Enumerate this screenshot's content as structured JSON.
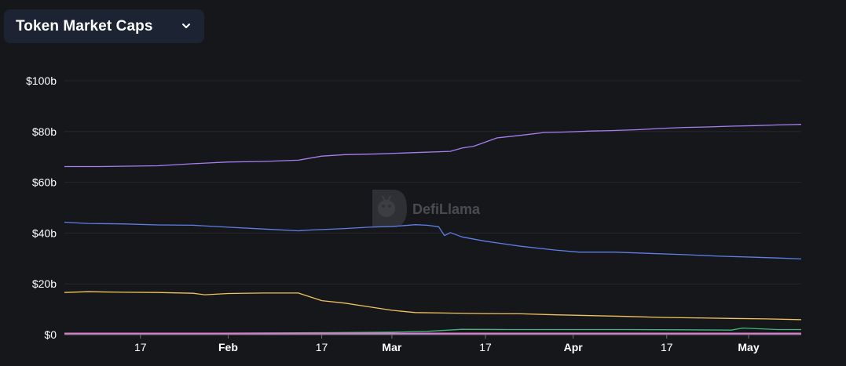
{
  "header": {
    "title": "Token Market Caps",
    "dropdown_icon": "chevron-down-icon"
  },
  "watermark": {
    "text": "DefiLlama",
    "icon": "llama-logo-icon"
  },
  "colors": {
    "background": "#16171b",
    "selector_bg": "#1c2433",
    "grid": "#26272c",
    "series": [
      "#a77ef0",
      "#5f7ee8",
      "#f1c45c",
      "#3fb877",
      "#e07bd2"
    ]
  },
  "chart_data": {
    "type": "line",
    "title": "",
    "xlabel": "",
    "ylabel": "",
    "ylim": [
      0,
      100
    ],
    "y_unit": "$b",
    "y_ticks": [
      "$0",
      "$20b",
      "$40b",
      "$60b",
      "$80b",
      "$100b"
    ],
    "y_tick_values": [
      0,
      20,
      40,
      60,
      80,
      100
    ],
    "x_ticks": [
      {
        "label": "17",
        "day": 17,
        "bold": false
      },
      {
        "label": "Feb",
        "day": 32,
        "bold": true
      },
      {
        "label": "17",
        "day": 48,
        "bold": false
      },
      {
        "label": "Mar",
        "day": 60,
        "bold": true
      },
      {
        "label": "17",
        "day": 76,
        "bold": false
      },
      {
        "label": "Apr",
        "day": 91,
        "bold": true
      },
      {
        "label": "17",
        "day": 107,
        "bold": false
      },
      {
        "label": "May",
        "day": 121,
        "bold": true
      }
    ],
    "xlim": [
      4,
      130
    ],
    "grid": true,
    "legend": "none",
    "series": [
      {
        "x": [
          4,
          10,
          20,
          26,
          32,
          38,
          44,
          48,
          52,
          58,
          64,
          70,
          72,
          74,
          78,
          82,
          86,
          90,
          94,
          98,
          102,
          106,
          110,
          114,
          118,
          122,
          126,
          130
        ],
        "values": [
          66.2,
          66.2,
          66.5,
          67.3,
          68.0,
          68.2,
          68.7,
          70.3,
          70.9,
          71.2,
          71.7,
          72.2,
          73.5,
          74.2,
          77.5,
          78.5,
          79.6,
          79.8,
          80.2,
          80.4,
          80.7,
          81.2,
          81.6,
          81.8,
          82.1,
          82.3,
          82.6,
          82.8
        ]
      },
      {
        "x": [
          4,
          8,
          14,
          20,
          26,
          32,
          38,
          44,
          46,
          52,
          56,
          60,
          64,
          66,
          68,
          69,
          70,
          72,
          76,
          82,
          88,
          92,
          98,
          104,
          110,
          116,
          122,
          126,
          130
        ],
        "values": [
          44.3,
          43.8,
          43.6,
          43.2,
          43.1,
          42.3,
          41.6,
          40.9,
          41.2,
          41.8,
          42.3,
          42.6,
          43.3,
          43.1,
          42.5,
          39.0,
          40.2,
          38.5,
          36.8,
          34.8,
          33.3,
          32.5,
          32.5,
          32.0,
          31.5,
          30.9,
          30.5,
          30.2,
          29.8
        ]
      },
      {
        "x": [
          4,
          8,
          14,
          20,
          26,
          28,
          32,
          38,
          44,
          46,
          48,
          52,
          56,
          60,
          64,
          70,
          76,
          82,
          88,
          94,
          100,
          106,
          112,
          118,
          124,
          130
        ],
        "values": [
          16.6,
          16.9,
          16.7,
          16.6,
          16.3,
          15.7,
          16.2,
          16.4,
          16.4,
          14.9,
          13.4,
          12.4,
          11.0,
          9.6,
          8.7,
          8.5,
          8.3,
          8.2,
          7.8,
          7.5,
          7.2,
          6.8,
          6.6,
          6.4,
          6.2,
          5.9
        ]
      },
      {
        "x": [
          4,
          30,
          50,
          60,
          66,
          72,
          80,
          90,
          100,
          110,
          118,
          120,
          126,
          130
        ],
        "values": [
          0.5,
          0.6,
          0.8,
          1.0,
          1.3,
          2.1,
          2.0,
          2.0,
          2.0,
          1.9,
          1.8,
          2.6,
          2.0,
          2.0
        ]
      },
      {
        "x": [
          4,
          130
        ],
        "values": [
          0.3,
          0.3
        ]
      }
    ]
  }
}
